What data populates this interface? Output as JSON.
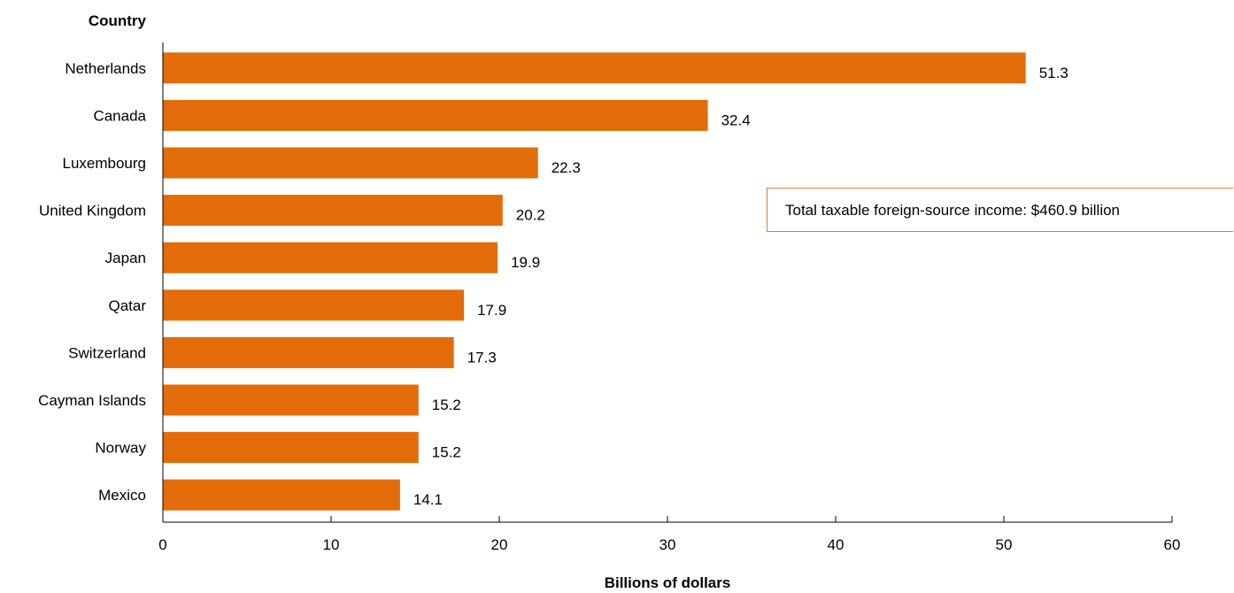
{
  "chart_data": {
    "type": "bar",
    "orientation": "horizontal",
    "categories": [
      "Netherlands",
      "Canada",
      "Luxembourg",
      "United Kingdom",
      "Japan",
      "Qatar",
      "Switzerland",
      "Cayman Islands",
      "Norway",
      "Mexico"
    ],
    "values": [
      51.3,
      32.4,
      22.3,
      20.2,
      19.9,
      17.9,
      17.3,
      15.2,
      15.2,
      14.1
    ],
    "value_labels": [
      "51.3",
      "32.4",
      "22.3",
      "20.2",
      "19.9",
      "17.9",
      "17.3",
      "15.2",
      "15.2",
      "14.1"
    ],
    "ylabel": "Country",
    "xlabel": "Billions of dollars",
    "xlim": [
      0,
      60
    ],
    "xticks": [
      0,
      10,
      20,
      30,
      40,
      50,
      60
    ],
    "bar_color": "#e36c0a",
    "grid": false,
    "annotation": "Total taxable foreign-source income: $460.9 billion"
  }
}
